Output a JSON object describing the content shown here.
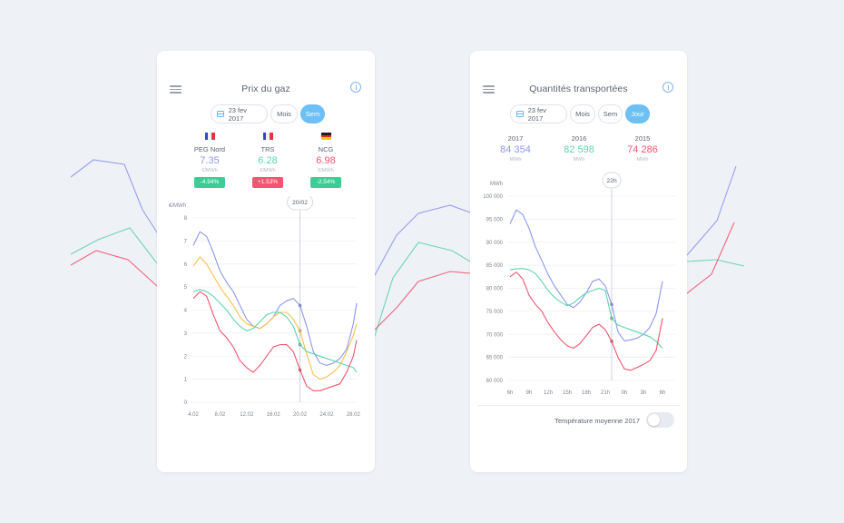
{
  "colors": {
    "background": "#eef1f6",
    "blue": "#8e96ee",
    "green": "#5fd3ac",
    "red": "#f0566f",
    "orange": "#f7c04f",
    "accent": "#6cc0f3",
    "badge_green": "#3ecc96",
    "badge_red": "#f0566f"
  },
  "background_lines": [
    {
      "color": "#8e96ee",
      "points": [
        [
          78,
          195
        ],
        [
          103,
          176
        ],
        [
          137,
          181
        ],
        [
          157,
          231
        ],
        [
          173,
          256
        ],
        [
          413,
          303
        ],
        [
          437,
          259
        ],
        [
          461,
          235
        ],
        [
          496,
          226
        ],
        [
          518,
          234
        ],
        [
          757,
          281
        ],
        [
          790,
          243
        ],
        [
          811,
          183
        ]
      ]
    },
    {
      "color": "#5fd3ac",
      "points": [
        [
          78,
          280
        ],
        [
          108,
          264
        ],
        [
          143,
          251
        ],
        [
          173,
          290
        ],
        [
          413,
          370
        ],
        [
          433,
          306
        ],
        [
          461,
          267
        ],
        [
          498,
          276
        ],
        [
          518,
          288
        ],
        [
          757,
          288
        ],
        [
          789,
          286
        ],
        [
          820,
          293
        ]
      ]
    },
    {
      "color": "#f0566f",
      "points": [
        [
          78,
          292
        ],
        [
          106,
          276
        ],
        [
          141,
          286
        ],
        [
          173,
          315
        ],
        [
          413,
          363
        ],
        [
          437,
          339
        ],
        [
          461,
          310
        ],
        [
          496,
          299
        ],
        [
          518,
          301
        ],
        [
          757,
          323
        ],
        [
          784,
          302
        ],
        [
          809,
          245
        ]
      ]
    }
  ],
  "card_gas": {
    "title": "Prix du gaz",
    "icons": {
      "menu": "menu-icon",
      "info": "info-icon",
      "calendar": "calendar-icon"
    },
    "date_label": "23 fev 2017",
    "tabs": [
      {
        "label": "Mois",
        "active": false
      },
      {
        "label": "Sem",
        "active": true
      }
    ],
    "stats": [
      {
        "flag": "fr",
        "name": "PEG Nord",
        "value": "7.35",
        "unit": "€/MWh",
        "change": "-4.94%",
        "value_color": "#8e96ee",
        "badge_color": "#3ecc96"
      },
      {
        "flag": "fr",
        "name": "TRS",
        "value": "6.28",
        "unit": "€/MWh",
        "change": "+1.53%",
        "value_color": "#5fd3ac",
        "badge_color": "#f0566f"
      },
      {
        "flag": "de",
        "name": "NCG",
        "value": "6.98",
        "unit": "€/MWh",
        "change": "-2.54%",
        "value_color": "#f0566f",
        "badge_color": "#3ecc96"
      }
    ]
  },
  "card_quant": {
    "title": "Quantités transportées",
    "icons": {
      "menu": "menu-icon",
      "info": "info-icon",
      "calendar": "calendar-icon"
    },
    "date_label": "23 fev 2017",
    "tabs": [
      {
        "label": "Mois",
        "active": false
      },
      {
        "label": "Sem",
        "active": false
      },
      {
        "label": "Jour",
        "active": true
      }
    ],
    "stats": [
      {
        "year": "2017",
        "value": "84 354",
        "unit": "MWh",
        "value_color": "#8e96ee"
      },
      {
        "year": "2016",
        "value": "82 598",
        "unit": "MWh",
        "value_color": "#5fd3ac"
      },
      {
        "year": "2015",
        "value": "74 286",
        "unit": "MWh",
        "value_color": "#f0566f"
      }
    ],
    "toggle_label": "Température moyenne 2017",
    "toggle_on": false
  },
  "chart_data": [
    {
      "type": "line",
      "chart_id": "gas",
      "title": "",
      "ylabel": "€/MWh",
      "ylim": [
        0,
        8
      ],
      "yticks": [
        "0",
        "1",
        "2",
        "3",
        "4",
        "5",
        "6",
        "7",
        "8"
      ],
      "xlim": [
        4,
        28.5
      ],
      "xticks": [
        {
          "x": 4,
          "label": "4.02"
        },
        {
          "x": 8,
          "label": "8.02"
        },
        {
          "x": 12,
          "label": "12.02"
        },
        {
          "x": 16,
          "label": "16.02"
        },
        {
          "x": 20,
          "label": "20.02"
        },
        {
          "x": 24,
          "label": "24.02"
        },
        {
          "x": 28,
          "label": "28.02"
        }
      ],
      "marker": {
        "x": 20,
        "label": "20/02"
      },
      "grid": true,
      "series": [
        {
          "color": "#8e96ee",
          "x": [
            4,
            5,
            6,
            7,
            8,
            9,
            10,
            11,
            12,
            13,
            14,
            15,
            16,
            17,
            18,
            19,
            20,
            21,
            22,
            23,
            24,
            25,
            26,
            27,
            28,
            28.5
          ],
          "values": [
            6.8,
            7.4,
            7.2,
            6.5,
            5.7,
            5.2,
            4.8,
            4.2,
            3.6,
            3.3,
            3.2,
            3.4,
            3.7,
            4.2,
            4.4,
            4.5,
            4.2,
            3.3,
            2.2,
            1.7,
            1.6,
            1.7,
            1.9,
            2.3,
            3.4,
            4.3
          ]
        },
        {
          "color": "#f7c04f",
          "x": [
            4,
            5,
            6,
            7,
            8,
            9,
            10,
            11,
            12,
            13,
            14,
            15,
            16,
            17,
            18,
            19,
            20,
            21,
            22,
            23,
            24,
            25,
            26,
            27,
            28,
            28.5
          ],
          "values": [
            5.9,
            6.3,
            6.0,
            5.5,
            5.0,
            4.6,
            4.2,
            3.7,
            3.4,
            3.3,
            3.2,
            3.4,
            3.7,
            3.9,
            3.9,
            3.6,
            3.1,
            2.1,
            1.2,
            1.0,
            1.1,
            1.3,
            1.6,
            2.2,
            2.9,
            3.4
          ]
        },
        {
          "color": "#5fd3ac",
          "x": [
            4,
            5,
            6,
            7,
            8,
            9,
            10,
            11,
            12,
            13,
            14,
            15,
            16,
            17,
            18,
            19,
            20,
            21,
            22,
            23,
            24,
            25,
            26,
            27,
            28,
            28.5
          ],
          "values": [
            4.8,
            4.9,
            4.8,
            4.6,
            4.3,
            4.0,
            3.6,
            3.3,
            3.1,
            3.2,
            3.5,
            3.8,
            3.9,
            3.9,
            3.7,
            3.3,
            2.5,
            2.2,
            2.1,
            2.0,
            1.9,
            1.8,
            1.7,
            1.6,
            1.5,
            1.3
          ]
        },
        {
          "color": "#f0566f",
          "x": [
            4,
            5,
            6,
            7,
            8,
            9,
            10,
            11,
            12,
            13,
            14,
            15,
            16,
            17,
            18,
            19,
            20,
            21,
            22,
            23,
            24,
            25,
            26,
            27,
            28,
            28.5
          ],
          "values": [
            4.5,
            4.8,
            4.6,
            3.8,
            3.1,
            2.8,
            2.4,
            1.8,
            1.5,
            1.3,
            1.6,
            2.0,
            2.4,
            2.5,
            2.5,
            2.2,
            1.4,
            0.7,
            0.5,
            0.5,
            0.6,
            0.7,
            0.8,
            1.3,
            2.0,
            2.7
          ]
        }
      ]
    },
    {
      "type": "line",
      "chart_id": "quant",
      "title": "",
      "ylabel": "MWh",
      "ylim": [
        60000,
        100000
      ],
      "yticks": [
        "60 000",
        "65 000",
        "70 000",
        "75 000",
        "80 000",
        "85 000",
        "90 000",
        "95 000",
        "100 000"
      ],
      "xlim": [
        0,
        26
      ],
      "xticks": [
        {
          "x": 0,
          "label": "6h"
        },
        {
          "x": 3,
          "label": "9h"
        },
        {
          "x": 6,
          "label": "12h"
        },
        {
          "x": 9,
          "label": "15h"
        },
        {
          "x": 12,
          "label": "18h"
        },
        {
          "x": 15,
          "label": "21h"
        },
        {
          "x": 18,
          "label": "0h"
        },
        {
          "x": 21,
          "label": "3h"
        },
        {
          "x": 24,
          "label": "6h"
        }
      ],
      "marker": {
        "x": 16,
        "label": "22h"
      },
      "grid": true,
      "series": [
        {
          "name": "2017",
          "color": "#8e96ee",
          "x": [
            0,
            1,
            2,
            3,
            4,
            5,
            6,
            7,
            8,
            9,
            10,
            11,
            12,
            13,
            14,
            15,
            16,
            17,
            18,
            19,
            20,
            21,
            22,
            23,
            24
          ],
          "values": [
            94000,
            97000,
            96000,
            93000,
            89000,
            86000,
            83000,
            80500,
            78500,
            76500,
            75800,
            77000,
            79000,
            81500,
            82000,
            80500,
            76500,
            70500,
            68600,
            68800,
            69200,
            70000,
            71500,
            74500,
            81500
          ]
        },
        {
          "name": "2016",
          "color": "#5fd3ac",
          "x": [
            0,
            1,
            2,
            3,
            4,
            5,
            6,
            7,
            8,
            9,
            10,
            11,
            12,
            13,
            14,
            15,
            16,
            17,
            18,
            19,
            20,
            21,
            22,
            23,
            24
          ],
          "values": [
            84000,
            84200,
            84300,
            84000,
            83200,
            81500,
            79500,
            78000,
            77000,
            76200,
            76800,
            78000,
            79000,
            79500,
            80000,
            79500,
            73500,
            72000,
            71500,
            71000,
            70500,
            70000,
            69500,
            68500,
            67000
          ]
        },
        {
          "name": "2015",
          "color": "#f0566f",
          "x": [
            0,
            1,
            2,
            3,
            4,
            5,
            6,
            7,
            8,
            9,
            10,
            11,
            12,
            13,
            14,
            15,
            16,
            17,
            18,
            19,
            20,
            21,
            22,
            23,
            24
          ],
          "values": [
            82500,
            83500,
            82000,
            78500,
            76500,
            75000,
            72500,
            70500,
            68800,
            67500,
            67000,
            68000,
            69700,
            71500,
            72200,
            71000,
            68500,
            65000,
            62500,
            62200,
            62800,
            63500,
            64300,
            66500,
            73500
          ]
        }
      ]
    }
  ]
}
